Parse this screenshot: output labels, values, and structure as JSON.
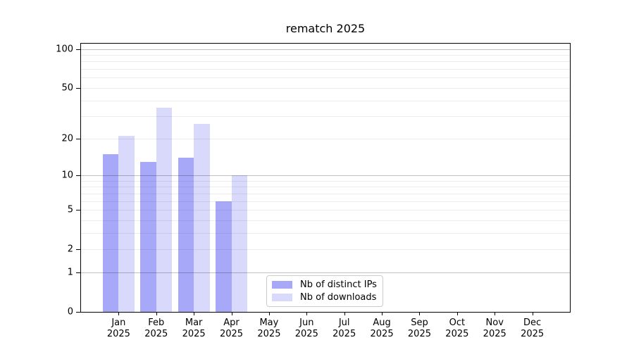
{
  "chart_data": {
    "type": "bar",
    "title": "rematch 2025",
    "categories": [
      {
        "label": "Jan",
        "sub": "2025"
      },
      {
        "label": "Feb",
        "sub": "2025"
      },
      {
        "label": "Mar",
        "sub": "2025"
      },
      {
        "label": "Apr",
        "sub": "2025"
      },
      {
        "label": "May",
        "sub": "2025"
      },
      {
        "label": "Jun",
        "sub": "2025"
      },
      {
        "label": "Jul",
        "sub": "2025"
      },
      {
        "label": "Aug",
        "sub": "2025"
      },
      {
        "label": "Sep",
        "sub": "2025"
      },
      {
        "label": "Oct",
        "sub": "2025"
      },
      {
        "label": "Nov",
        "sub": "2025"
      },
      {
        "label": "Dec",
        "sub": "2025"
      }
    ],
    "series": [
      {
        "name": "Nb of distinct IPs",
        "color": "#a8a8f9",
        "values": [
          15,
          13,
          14,
          6,
          null,
          null,
          null,
          null,
          null,
          null,
          null,
          null
        ]
      },
      {
        "name": "Nb of downloads",
        "color": "#d9d9fb",
        "values": [
          21,
          35,
          26,
          10,
          null,
          null,
          null,
          null,
          null,
          null,
          null,
          null
        ]
      }
    ],
    "yscale": "log1p",
    "ylim": [
      0,
      110
    ],
    "y_tick_values": [
      0,
      1,
      2,
      5,
      10,
      20,
      50,
      100
    ],
    "y_major_gridlines": [
      1,
      10,
      100
    ],
    "y_minor_gridlines": [
      2,
      3,
      4,
      5,
      6,
      7,
      8,
      9,
      20,
      30,
      40,
      50,
      60,
      70,
      80,
      90
    ],
    "grid": true,
    "legend_position": "lower center-right"
  }
}
